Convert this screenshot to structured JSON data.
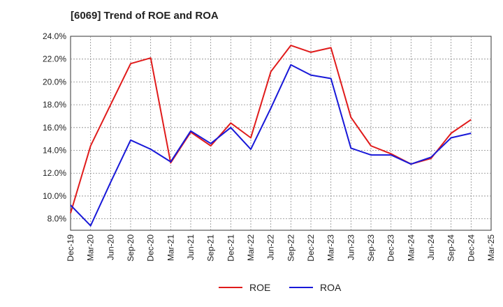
{
  "chart_data": {
    "type": "line",
    "title": "[6069]  Trend of ROE and ROA",
    "xlabel": "",
    "ylabel": "",
    "categories": [
      "Dec-19",
      "Mar-20",
      "Jun-20",
      "Sep-20",
      "Dec-20",
      "Mar-21",
      "Jun-21",
      "Sep-21",
      "Dec-21",
      "Mar-22",
      "Jun-22",
      "Sep-22",
      "Dec-22",
      "Mar-23",
      "Jun-23",
      "Sep-23",
      "Dec-23",
      "Mar-24",
      "Jun-24",
      "Sep-24",
      "Dec-24",
      "Mar-25"
    ],
    "ylim": [
      7.0,
      24.0
    ],
    "yticks": [
      8.0,
      10.0,
      12.0,
      14.0,
      16.0,
      18.0,
      20.0,
      22.0,
      24.0
    ],
    "ytick_labels": [
      "8.0%",
      "10.0%",
      "12.0%",
      "14.0%",
      "16.0%",
      "18.0%",
      "20.0%",
      "22.0%",
      "24.0%"
    ],
    "grid": true,
    "legend_position": "bottom-center",
    "series": [
      {
        "name": "ROE",
        "color": "#e01b1b",
        "values": [
          8.5,
          14.4,
          18.0,
          21.6,
          22.1,
          12.9,
          15.6,
          14.4,
          16.4,
          15.1,
          20.9,
          23.2,
          22.6,
          23.0,
          16.9,
          14.4,
          13.7,
          12.8,
          13.3,
          15.5,
          16.7,
          null
        ]
      },
      {
        "name": "ROA",
        "color": "#1818d8",
        "values": [
          9.2,
          7.4,
          11.2,
          14.9,
          14.1,
          13.0,
          15.7,
          14.6,
          16.0,
          14.1,
          17.7,
          21.5,
          20.6,
          20.3,
          14.2,
          13.6,
          13.6,
          12.8,
          13.4,
          15.1,
          15.5,
          null
        ]
      }
    ]
  }
}
